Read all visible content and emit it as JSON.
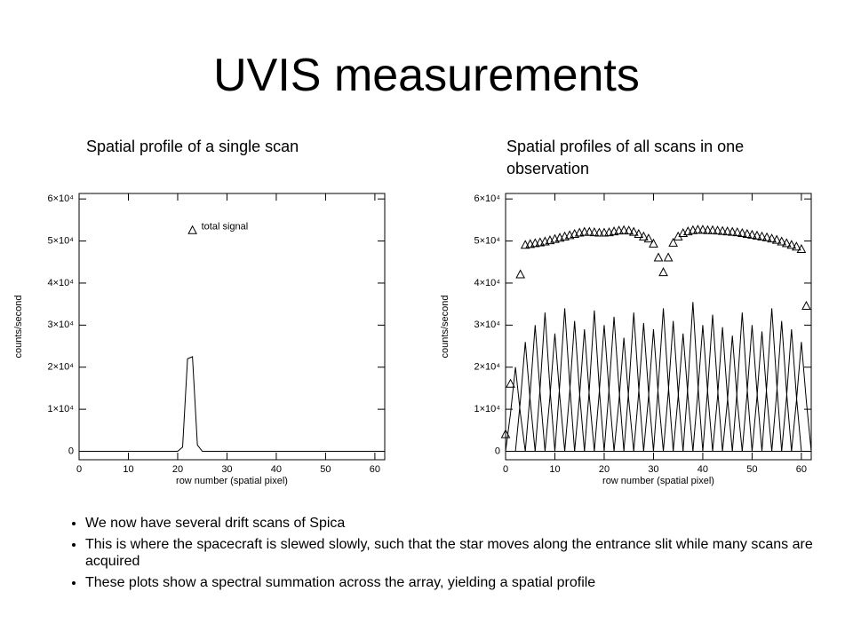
{
  "title": "UVIS measurements",
  "bullets": [
    "We now have several drift scans of Spica",
    "This is where the spacecraft is slewed slowly, such that the star moves along the entrance slit while many scans are acquired",
    "These plots show a spectral summation across the array, yielding a spatial profile"
  ],
  "chart_data": [
    {
      "type": "line",
      "title": "Spatial profile of a single scan",
      "xlabel": "row number (spatial pixel)",
      "ylabel": "counts/second",
      "color": "#000000",
      "xlim": [
        0,
        62
      ],
      "ylim": [
        -2000,
        61300
      ],
      "xticks": [
        0,
        10,
        20,
        30,
        40,
        50,
        60
      ],
      "yticks": [
        0,
        {
          "value": 10000,
          "label": "1×10⁴"
        },
        {
          "value": 20000,
          "label": "2×10⁴"
        },
        {
          "value": 30000,
          "label": "3×10⁴"
        },
        {
          "value": 40000,
          "label": "4×10⁴"
        },
        {
          "value": 50000,
          "label": "5×10⁴"
        },
        {
          "value": 60000,
          "label": "6×10⁴"
        }
      ],
      "series": [
        {
          "x": [
            0,
            20,
            21,
            22,
            23,
            24,
            25,
            62
          ],
          "values": [
            0,
            0,
            1000,
            22000,
            22500,
            1500,
            0,
            0
          ]
        }
      ],
      "markers": {
        "x": [
          23
        ],
        "values": [
          52500
        ]
      },
      "annotation": "total signal"
    },
    {
      "type": "line",
      "title": "Spatial profiles of all scans in one observation",
      "xlabel": "row number (spatial pixel)",
      "ylabel": "counts/second",
      "color": "#000000",
      "xlim": [
        0,
        62
      ],
      "ylim": [
        -2000,
        61300
      ],
      "xticks": [
        0,
        10,
        20,
        30,
        40,
        50,
        60
      ],
      "yticks": [
        0,
        {
          "value": 10000,
          "label": "1×10⁴"
        },
        {
          "value": 20000,
          "label": "2×10⁴"
        },
        {
          "value": 30000,
          "label": "3×10⁴"
        },
        {
          "value": 40000,
          "label": "4×10⁴"
        },
        {
          "value": 50000,
          "label": "5×10⁴"
        },
        {
          "value": 60000,
          "label": "6×10⁴"
        }
      ],
      "series": [
        {
          "x": [
            0,
            1,
            2,
            3,
            4
          ],
          "values": [
            0,
            9000,
            20000,
            9000,
            0
          ]
        },
        {
          "x": [
            2,
            3,
            4,
            5,
            6
          ],
          "values": [
            0,
            12000,
            26000,
            12000,
            0
          ]
        },
        {
          "x": [
            4,
            5,
            6,
            7,
            8
          ],
          "values": [
            0,
            14000,
            30000,
            14000,
            0
          ]
        },
        {
          "x": [
            6,
            7,
            8,
            9,
            10
          ],
          "values": [
            0,
            15000,
            33000,
            15000,
            0
          ]
        },
        {
          "x": [
            8,
            9,
            10,
            11,
            12
          ],
          "values": [
            0,
            13000,
            28000,
            13000,
            0
          ]
        },
        {
          "x": [
            10,
            11,
            12,
            13,
            14
          ],
          "values": [
            0,
            16000,
            34000,
            16000,
            0
          ]
        },
        {
          "x": [
            12,
            13,
            14,
            15,
            16
          ],
          "values": [
            0,
            14000,
            31000,
            14000,
            0
          ]
        },
        {
          "x": [
            14,
            15,
            16,
            17,
            18
          ],
          "values": [
            0,
            13000,
            29000,
            13000,
            0
          ]
        },
        {
          "x": [
            16,
            17,
            18,
            19,
            20
          ],
          "values": [
            0,
            15000,
            33500,
            15000,
            0
          ]
        },
        {
          "x": [
            18,
            19,
            20,
            21,
            22
          ],
          "values": [
            0,
            14000,
            30000,
            14000,
            0
          ]
        },
        {
          "x": [
            20,
            21,
            22,
            23,
            24
          ],
          "values": [
            0,
            15000,
            32000,
            15000,
            0
          ]
        },
        {
          "x": [
            22,
            23,
            24,
            25,
            26
          ],
          "values": [
            0,
            12000,
            27000,
            12000,
            0
          ]
        },
        {
          "x": [
            24,
            25,
            26,
            27,
            28
          ],
          "values": [
            0,
            15000,
            33000,
            15000,
            0
          ]
        },
        {
          "x": [
            26,
            27,
            28,
            29,
            30
          ],
          "values": [
            0,
            14000,
            30500,
            14000,
            0
          ]
        },
        {
          "x": [
            28,
            29,
            30,
            31,
            32
          ],
          "values": [
            0,
            13000,
            29000,
            13000,
            0
          ]
        },
        {
          "x": [
            30,
            31,
            32,
            33,
            34
          ],
          "values": [
            0,
            16000,
            34000,
            16000,
            0
          ]
        },
        {
          "x": [
            32,
            33,
            34,
            35,
            36
          ],
          "values": [
            0,
            14000,
            31000,
            14000,
            0
          ]
        },
        {
          "x": [
            34,
            35,
            36,
            37,
            38
          ],
          "values": [
            0,
            13000,
            28000,
            13000,
            0
          ]
        },
        {
          "x": [
            36,
            37,
            38,
            39,
            40
          ],
          "values": [
            0,
            16000,
            35500,
            16000,
            0
          ]
        },
        {
          "x": [
            38,
            39,
            40,
            41,
            42
          ],
          "values": [
            0,
            14000,
            30000,
            14000,
            0
          ]
        },
        {
          "x": [
            40,
            41,
            42,
            43,
            44
          ],
          "values": [
            0,
            15000,
            32500,
            15000,
            0
          ]
        },
        {
          "x": [
            42,
            43,
            44,
            45,
            46
          ],
          "values": [
            0,
            13000,
            29500,
            13000,
            0
          ]
        },
        {
          "x": [
            44,
            45,
            46,
            47,
            48
          ],
          "values": [
            0,
            12000,
            27500,
            12000,
            0
          ]
        },
        {
          "x": [
            46,
            47,
            48,
            49,
            50
          ],
          "values": [
            0,
            15000,
            33000,
            15000,
            0
          ]
        },
        {
          "x": [
            48,
            49,
            50,
            51,
            52
          ],
          "values": [
            0,
            14000,
            30000,
            14000,
            0
          ]
        },
        {
          "x": [
            50,
            51,
            52,
            53,
            54
          ],
          "values": [
            0,
            13000,
            28500,
            13000,
            0
          ]
        },
        {
          "x": [
            52,
            53,
            54,
            55,
            56
          ],
          "values": [
            0,
            16000,
            34000,
            16000,
            0
          ]
        },
        {
          "x": [
            54,
            55,
            56,
            57,
            58
          ],
          "values": [
            0,
            14000,
            31000,
            14000,
            0
          ]
        },
        {
          "x": [
            56,
            57,
            58,
            59,
            60
          ],
          "values": [
            0,
            13000,
            29000,
            13000,
            0
          ]
        },
        {
          "x": [
            58,
            59,
            60,
            61,
            62
          ],
          "values": [
            0,
            12000,
            26000,
            12000,
            0
          ]
        },
        {
          "x": [
            0,
            62
          ],
          "values": [
            0,
            0
          ]
        }
      ],
      "markers": {
        "x": [
          0,
          1,
          3,
          4,
          5,
          6,
          7,
          8,
          9,
          10,
          11,
          12,
          13,
          14,
          15,
          16,
          17,
          18,
          19,
          20,
          21,
          22,
          23,
          24,
          25,
          26,
          27,
          28,
          29,
          30,
          31,
          32,
          33,
          34,
          35,
          36,
          37,
          38,
          39,
          40,
          41,
          42,
          43,
          44,
          45,
          46,
          47,
          48,
          49,
          50,
          51,
          52,
          53,
          54,
          55,
          56,
          57,
          58,
          59,
          60,
          61
        ],
        "values": [
          4000,
          16000,
          42000,
          49000,
          49200,
          49400,
          49600,
          49800,
          50100,
          50400,
          50700,
          51000,
          51300,
          51600,
          51900,
          52100,
          52100,
          52000,
          51900,
          51900,
          52000,
          52200,
          52400,
          52500,
          52400,
          52100,
          51600,
          51000,
          50500,
          49300,
          46000,
          42500,
          46000,
          49500,
          51000,
          51800,
          52200,
          52500,
          52600,
          52600,
          52500,
          52500,
          52400,
          52300,
          52200,
          52100,
          52000,
          51800,
          51600,
          51400,
          51200,
          51000,
          50800,
          50500,
          50200,
          49800,
          49400,
          49000,
          48600,
          48000,
          34500
        ]
      }
    }
  ]
}
